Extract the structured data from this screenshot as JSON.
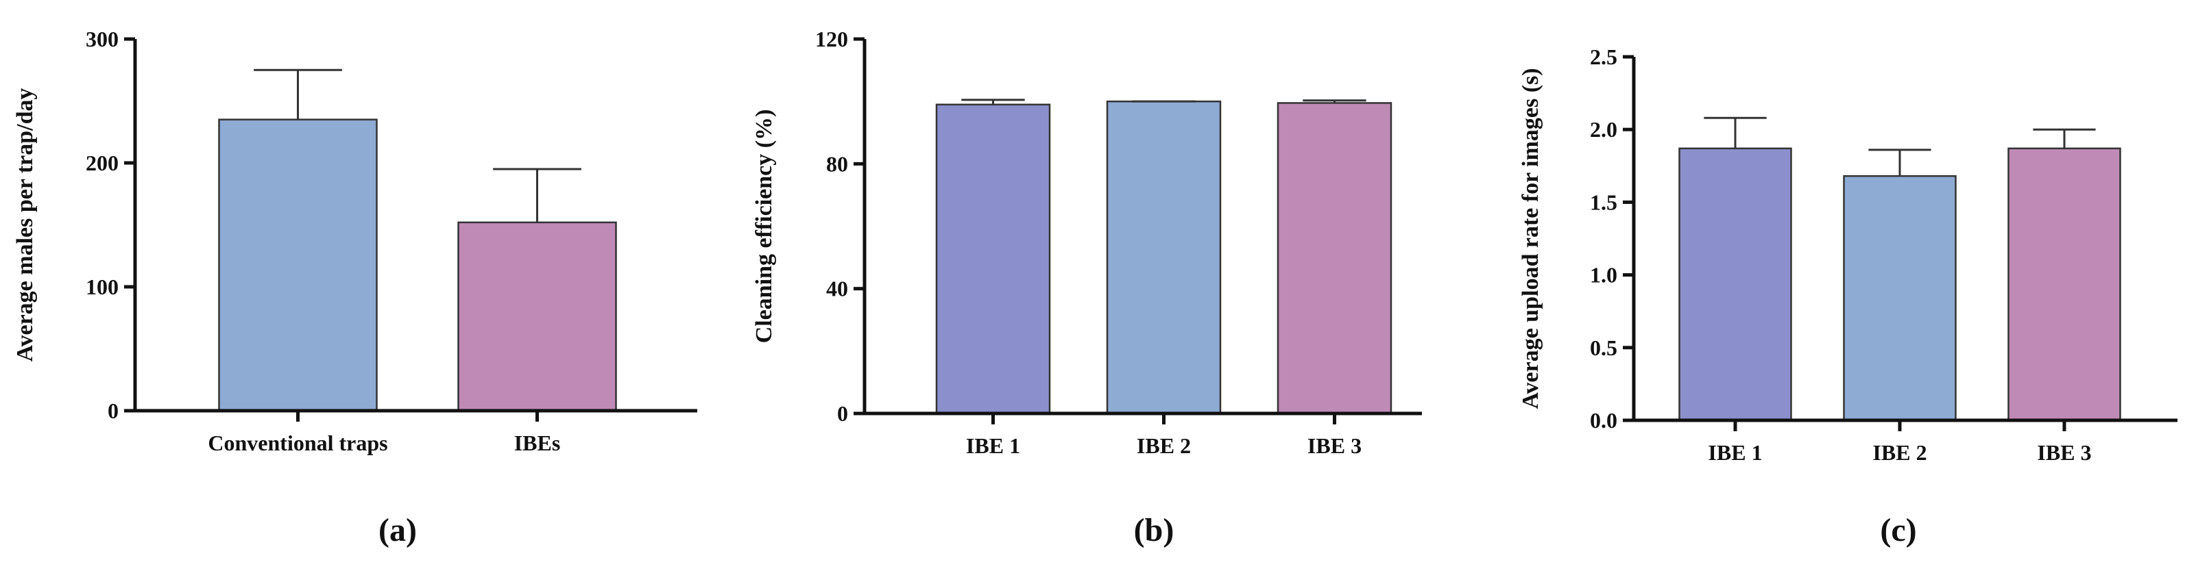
{
  "chart_data": [
    {
      "type": "bar",
      "caption": "(a)",
      "y_label": "Average males per trap/day",
      "categories": [
        "Conventional traps",
        "IBEs"
      ],
      "values": [
        235,
        152
      ],
      "errors": [
        40,
        43
      ],
      "colors": [
        "#8eabd4",
        "#c08ab7"
      ],
      "ylim": [
        0,
        300
      ],
      "yticks": [
        0,
        100,
        200,
        300
      ]
    },
    {
      "type": "bar",
      "caption": "(b)",
      "y_label": "Cleaning efficiency (%)",
      "categories": [
        "IBE 1",
        "IBE 2",
        "IBE 3"
      ],
      "values": [
        99,
        100,
        99.5
      ],
      "errors": [
        1.5,
        0,
        0.8
      ],
      "colors": [
        "#8b8fcc",
        "#8eabd4",
        "#c08ab7"
      ],
      "ylim": [
        0,
        120
      ],
      "yticks": [
        0,
        40,
        80,
        120
      ]
    },
    {
      "type": "bar",
      "caption": "(c)",
      "y_label": "Average upload rate for images (s)",
      "categories": [
        "IBE 1",
        "IBE 2",
        "IBE 3"
      ],
      "values": [
        1.87,
        1.68,
        1.87
      ],
      "errors": [
        0.21,
        0.18,
        0.13
      ],
      "colors": [
        "#8b8fcc",
        "#8eabd4",
        "#c08ab7"
      ],
      "ylim": [
        0,
        2.5
      ],
      "yticks": [
        {
          "value": 0,
          "label": "0.0"
        },
        0.5,
        {
          "value": 1,
          "label": "1.0"
        },
        1.5,
        {
          "value": 2,
          "label": "2.0"
        },
        2.5
      ]
    }
  ]
}
